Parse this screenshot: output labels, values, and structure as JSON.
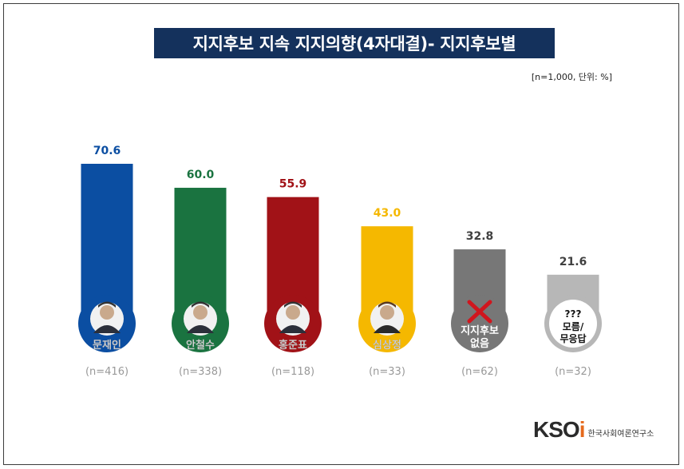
{
  "title": "지지후보 지속 지지의향(4자대결)- 지지후보별",
  "note": "[n=1,000,  단위: %]",
  "logo": {
    "mark_main": "KSO",
    "mark_accent": "i",
    "text": "한국사회여론연구소"
  },
  "chart_data": {
    "type": "bar",
    "title": "지지후보 지속 지지의향(4자대결)- 지지후보별",
    "xlabel": "",
    "ylabel": "",
    "ylim": [
      0,
      100
    ],
    "grid": false,
    "categories": [
      "문재인",
      "안철수",
      "홍준표",
      "심상정",
      "지지후보 없음",
      "모름/무응답"
    ],
    "values": [
      70.6,
      60.0,
      55.9,
      43.0,
      32.8,
      21.6
    ],
    "value_labels": [
      "70.6",
      "60.0",
      "55.9",
      "43.0",
      "32.8",
      "21.6"
    ],
    "sample_sizes": [
      "(n=416)",
      "(n=338)",
      "(n=118)",
      "(n=33)",
      "(n=62)",
      "(n=32)"
    ],
    "colors": [
      "#0b4ea2",
      "#1a7340",
      "#a11217",
      "#f5b800",
      "#777777",
      "#b7b7b7"
    ],
    "value_label_colors": [
      "#0b4ea2",
      "#1a7340",
      "#a11217",
      "#f5b800",
      "#404040",
      "#404040"
    ]
  },
  "icons": [
    "candidate-photo-moon",
    "candidate-photo-ahn",
    "candidate-photo-hong",
    "candidate-photo-sim",
    "x-mark-icon",
    "question-marks"
  ],
  "circle_texts": {
    "x_label_lines": [
      "지지후보",
      "없음"
    ],
    "question_mark": "???",
    "unknown_lines": [
      "모름/",
      "무응답"
    ]
  }
}
